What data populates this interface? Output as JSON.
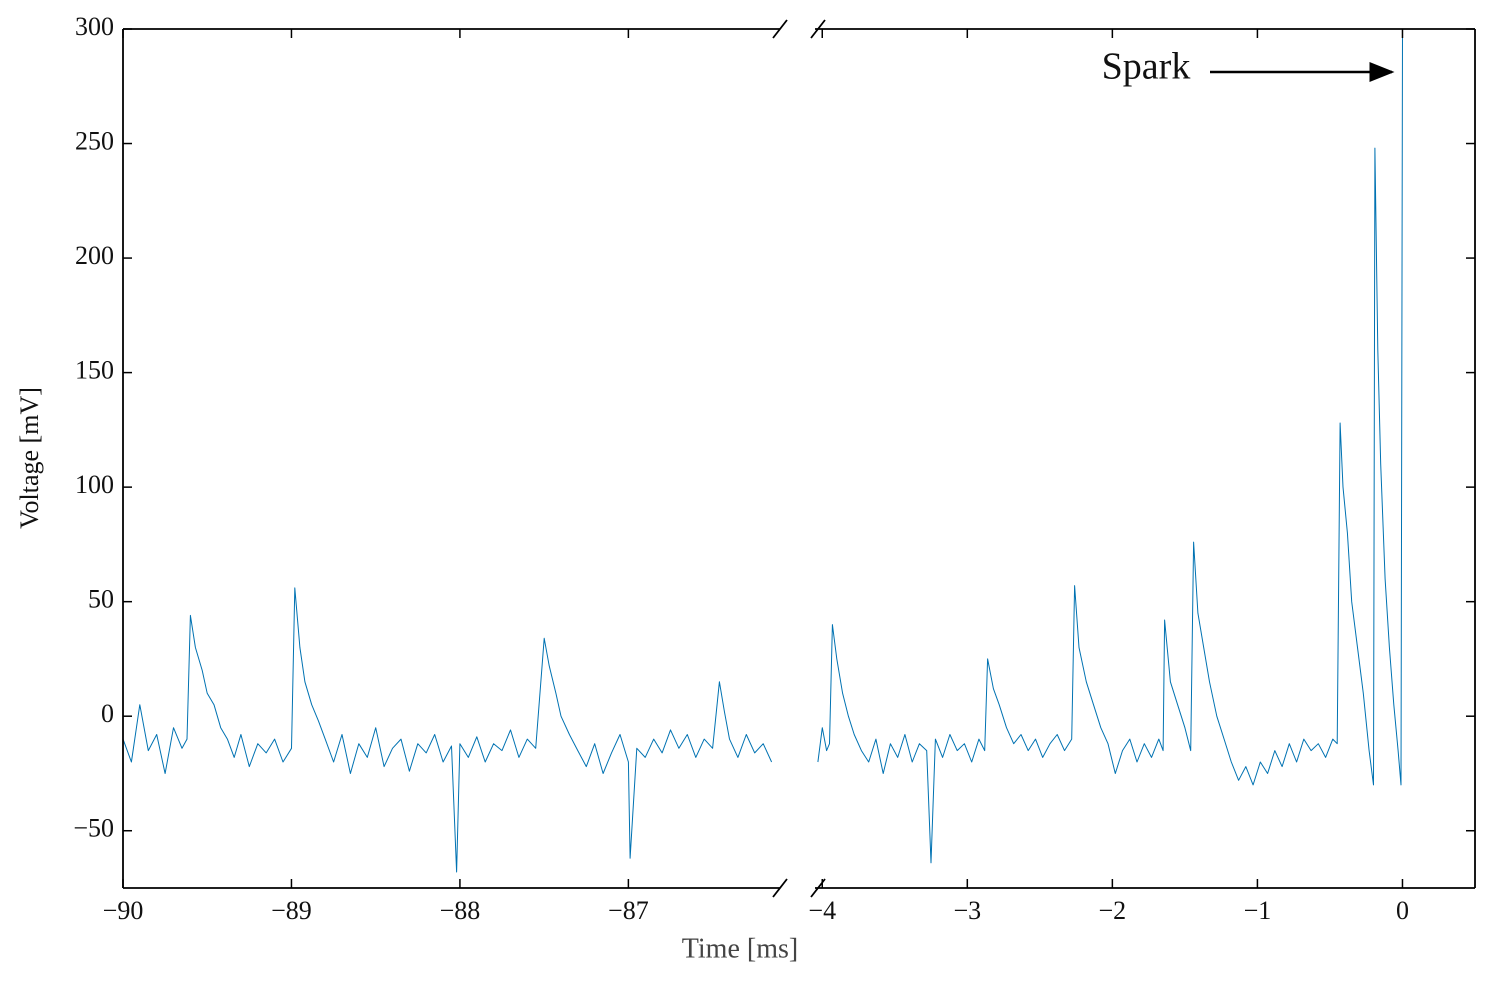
{
  "chart_data": [
    {
      "type": "line",
      "y_label": "Voltage [mV]",
      "x_label": "Time [ms]",
      "xlim": [
        -90,
        -86.1
      ],
      "ylim": [
        -75,
        300
      ],
      "xticks": [
        {
          "value": -90,
          "label": "−90"
        },
        {
          "value": -89,
          "label": "−89"
        },
        {
          "value": -88,
          "label": "−88"
        },
        {
          "value": -87,
          "label": "−87"
        }
      ],
      "yticks": [
        {
          "value": -50,
          "label": "−50"
        },
        0,
        50,
        100,
        150,
        200,
        250,
        300
      ],
      "series": [
        {
          "color": "#0072b2",
          "x": [
            -90,
            -89.95,
            -89.9,
            -89.85,
            -89.8,
            -89.75,
            -89.7,
            -89.65,
            -89.62,
            -89.6,
            -89.57,
            -89.53,
            -89.5,
            -89.46,
            -89.42,
            -89.38,
            -89.34,
            -89.3,
            -89.25,
            -89.2,
            -89.15,
            -89.1,
            -89.05,
            -89.0,
            -88.98,
            -88.95,
            -88.92,
            -88.88,
            -88.84,
            -88.8,
            -88.75,
            -88.7,
            -88.65,
            -88.6,
            -88.55,
            -88.5,
            -88.45,
            -88.4,
            -88.35,
            -88.3,
            -88.25,
            -88.2,
            -88.15,
            -88.1,
            -88.05,
            -88.02,
            -88.0,
            -87.95,
            -87.9,
            -87.85,
            -87.8,
            -87.75,
            -87.7,
            -87.65,
            -87.6,
            -87.55,
            -87.5,
            -87.47,
            -87.43,
            -87.4,
            -87.35,
            -87.3,
            -87.25,
            -87.2,
            -87.15,
            -87.1,
            -87.05,
            -87.0,
            -86.99,
            -86.95,
            -86.9,
            -86.85,
            -86.8,
            -86.75,
            -86.7,
            -86.65,
            -86.6,
            -86.55,
            -86.5,
            -86.46,
            -86.43,
            -86.4,
            -86.35,
            -86.3,
            -86.25,
            -86.2,
            -86.15
          ],
          "values": [
            -10,
            -20,
            5,
            -15,
            -8,
            -25,
            -5,
            -14,
            -10,
            44,
            30,
            20,
            10,
            5,
            -5,
            -10,
            -18,
            -8,
            -22,
            -12,
            -16,
            -10,
            -20,
            -14,
            56,
            30,
            15,
            5,
            -2,
            -10,
            -20,
            -8,
            -25,
            -12,
            -18,
            -5,
            -22,
            -14,
            -10,
            -24,
            -12,
            -16,
            -8,
            -20,
            -13,
            -68,
            -12,
            -18,
            -9,
            -20,
            -12,
            -15,
            -6,
            -18,
            -10,
            -14,
            34,
            22,
            10,
            0,
            -8,
            -15,
            -22,
            -12,
            -25,
            -16,
            -8,
            -20,
            -62,
            -14,
            -18,
            -10,
            -16,
            -6,
            -14,
            -8,
            -18,
            -10,
            -14,
            15,
            2,
            -10,
            -18,
            -8,
            -16,
            -12,
            -20
          ]
        }
      ]
    },
    {
      "type": "line",
      "annotation": "Spark",
      "xlim": [
        -4.05,
        0.5
      ],
      "ylim": [
        -75,
        300
      ],
      "xticks": [
        {
          "value": -4,
          "label": "−4"
        },
        {
          "value": -3,
          "label": "−3"
        },
        {
          "value": -2,
          "label": "−2"
        },
        {
          "value": -1,
          "label": "−1"
        },
        0
      ],
      "series": [
        {
          "color": "#0072b2",
          "x": [
            -4.03,
            -4.0,
            -3.97,
            -3.95,
            -3.93,
            -3.9,
            -3.86,
            -3.82,
            -3.78,
            -3.73,
            -3.68,
            -3.63,
            -3.58,
            -3.53,
            -3.48,
            -3.43,
            -3.38,
            -3.33,
            -3.28,
            -3.25,
            -3.22,
            -3.17,
            -3.12,
            -3.07,
            -3.02,
            -2.97,
            -2.92,
            -2.88,
            -2.86,
            -2.82,
            -2.78,
            -2.73,
            -2.68,
            -2.63,
            -2.58,
            -2.53,
            -2.48,
            -2.43,
            -2.38,
            -2.33,
            -2.28,
            -2.26,
            -2.23,
            -2.18,
            -2.13,
            -2.08,
            -2.03,
            -1.98,
            -1.93,
            -1.88,
            -1.83,
            -1.78,
            -1.73,
            -1.68,
            -1.65,
            -1.64,
            -1.6,
            -1.55,
            -1.5,
            -1.46,
            -1.44,
            -1.41,
            -1.37,
            -1.33,
            -1.28,
            -1.23,
            -1.18,
            -1.13,
            -1.08,
            -1.03,
            -0.98,
            -0.93,
            -0.88,
            -0.83,
            -0.78,
            -0.73,
            -0.68,
            -0.63,
            -0.58,
            -0.53,
            -0.48,
            -0.45,
            -0.43,
            -0.41,
            -0.38,
            -0.35,
            -0.31,
            -0.27,
            -0.23,
            -0.2,
            -0.19,
            -0.17,
            -0.15,
            -0.12,
            -0.09,
            -0.06,
            -0.03,
            -0.01,
            0.0
          ],
          "values": [
            -20,
            -5,
            -15,
            -12,
            40,
            25,
            10,
            0,
            -8,
            -15,
            -20,
            -10,
            -25,
            -12,
            -18,
            -8,
            -20,
            -12,
            -15,
            -64,
            -10,
            -18,
            -8,
            -15,
            -12,
            -20,
            -10,
            -15,
            25,
            12,
            5,
            -5,
            -12,
            -8,
            -15,
            -10,
            -18,
            -12,
            -8,
            -15,
            -10,
            57,
            30,
            15,
            5,
            -5,
            -12,
            -25,
            -15,
            -10,
            -20,
            -12,
            -18,
            -10,
            -15,
            42,
            15,
            5,
            -5,
            -15,
            76,
            45,
            30,
            15,
            0,
            -10,
            -20,
            -28,
            -22,
            -30,
            -20,
            -25,
            -15,
            -22,
            -12,
            -20,
            -10,
            -15,
            -12,
            -18,
            -10,
            -12,
            128,
            100,
            80,
            50,
            30,
            10,
            -15,
            -30,
            248,
            160,
            110,
            60,
            30,
            5,
            -15,
            -30,
            300
          ]
        }
      ]
    }
  ]
}
